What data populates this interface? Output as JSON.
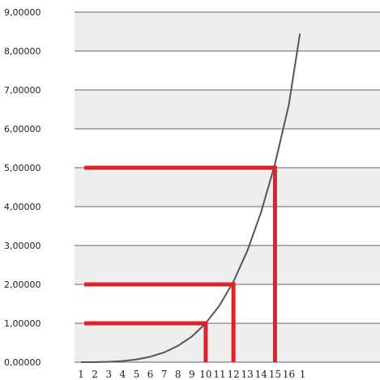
{
  "chart_data": {
    "type": "line",
    "title": "",
    "xlabel": "",
    "ylabel": "",
    "x_ticks": [
      "1",
      "2",
      "3",
      "4",
      "5",
      "6",
      "7",
      "8",
      "9",
      "10",
      "11",
      "12",
      "13",
      "14",
      "15",
      "16",
      "1"
    ],
    "y_ticks": [
      "0,00000",
      "1,00000",
      "2,00000",
      "3,00000",
      "4,00000",
      "5,00000",
      "6,00000",
      "7,00000",
      "8,00000",
      "9,00000"
    ],
    "ylim": [
      0,
      9
    ],
    "xlim": [
      1,
      17
    ],
    "grid": true,
    "legend": "none",
    "series": [
      {
        "color": "#555555",
        "x": [
          1,
          2,
          3,
          4,
          5,
          6,
          7,
          8,
          9,
          10,
          11,
          12,
          13,
          14,
          15,
          16,
          16.8
        ],
        "y": [
          0.0,
          0.0,
          0.01,
          0.03,
          0.07,
          0.14,
          0.25,
          0.42,
          0.66,
          1.0,
          1.46,
          2.07,
          2.86,
          3.86,
          5.1,
          6.62,
          8.45
        ]
      }
    ],
    "reference_lines": [
      {
        "y": 1,
        "x": 10
      },
      {
        "y": 2,
        "x": 12
      },
      {
        "y": 5,
        "x": 15
      }
    ],
    "colors": {
      "band": "#eeeeee",
      "grid": "#666666",
      "highlight": "#e0202a",
      "curve": "#555555"
    }
  }
}
